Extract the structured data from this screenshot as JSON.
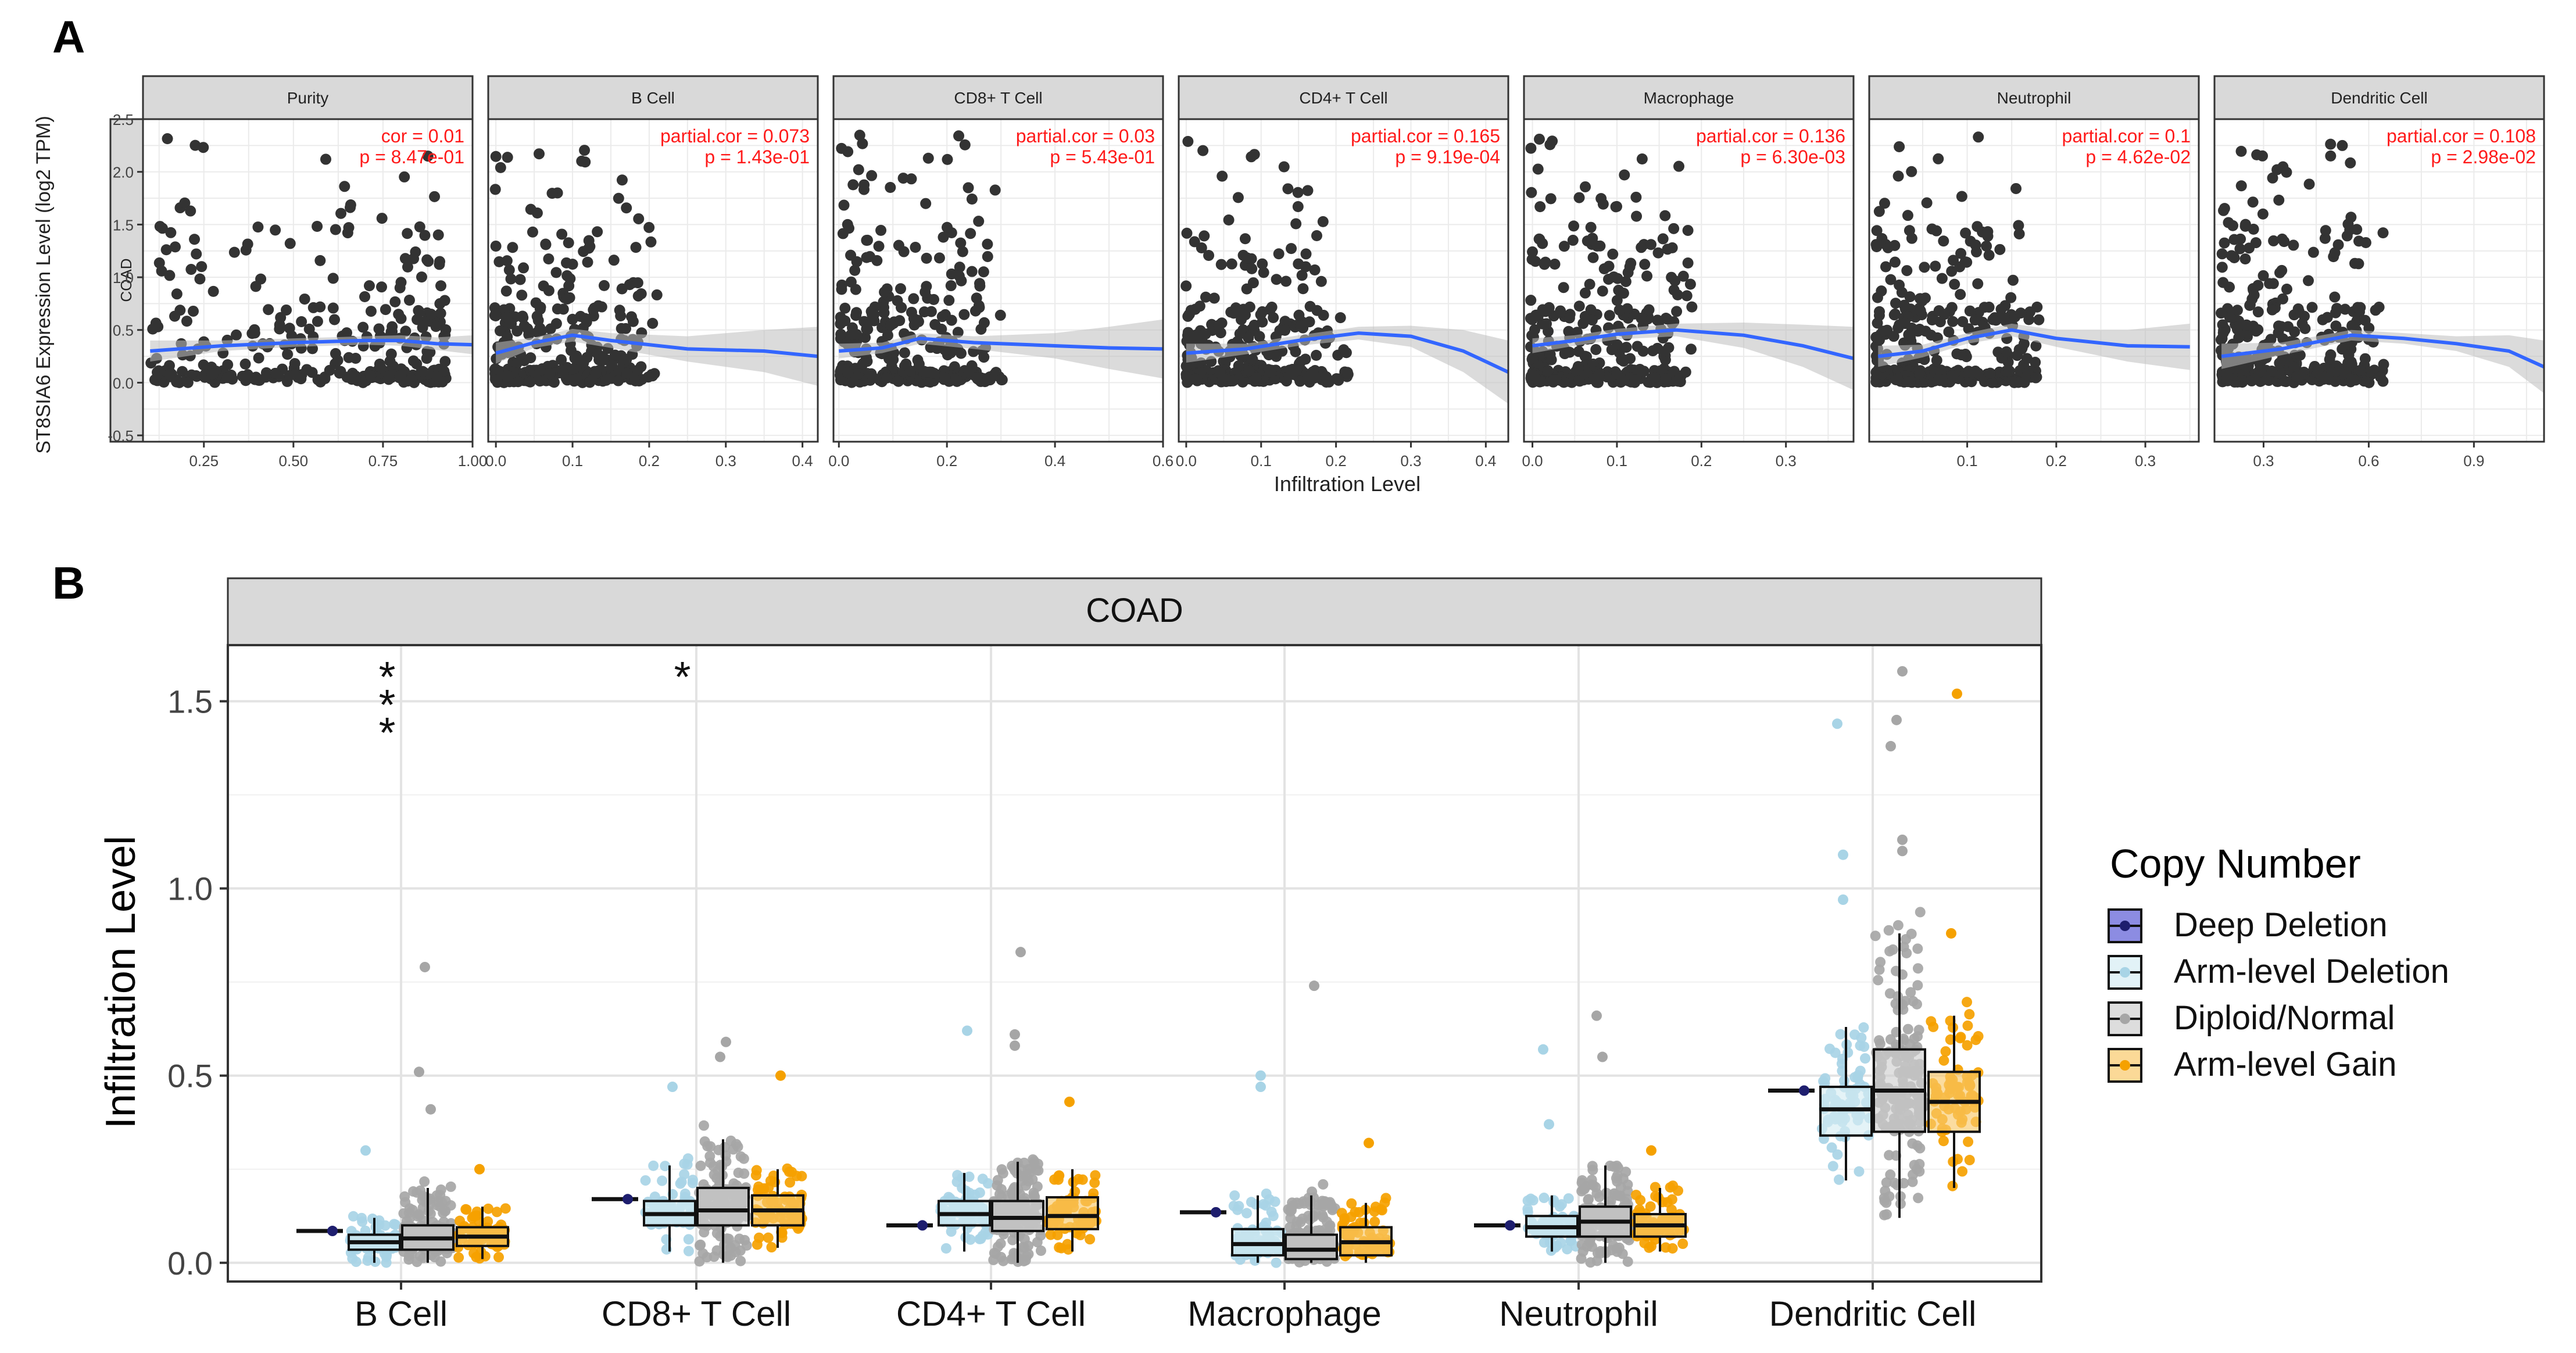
{
  "figure": {
    "panel_a_letter": "A",
    "panel_b_letter": "B"
  },
  "chart_data": [
    {
      "type": "scatter",
      "title": "",
      "row_strip": "COAD",
      "xlabel": "Infiltration Level",
      "ylabel": "ST8SIA6 Expression Level (log2 TPM)",
      "ylim": [
        -0.5,
        2.5
      ],
      "yticks": [
        -0.5,
        0.0,
        0.5,
        1.0,
        1.5,
        2.0,
        2.5
      ],
      "ytick_labels": [
        "-0.5",
        "0.0",
        "0.5",
        "1.0",
        "1.5",
        "2.0",
        "2.5"
      ],
      "point_color": "#333333",
      "trend_color": "#3366ff",
      "ci_color": "#bdbdbd",
      "annotation_color": "#ff1a1a",
      "panels": [
        {
          "name": "Purity",
          "xlim": [
            0.08,
            1.0
          ],
          "xticks": [
            0.25,
            0.5,
            0.75,
            1.0
          ],
          "xtick_labels": [
            "0.25",
            "0.50",
            "0.75",
            "1.00"
          ],
          "stat_line1": "cor = 0.01",
          "stat_line2": "p = 8.47e-01",
          "trend": [
            [
              0.1,
              0.3
            ],
            [
              0.3,
              0.35
            ],
            [
              0.5,
              0.38
            ],
            [
              0.7,
              0.4
            ],
            [
              0.8,
              0.4
            ],
            [
              0.9,
              0.37
            ],
            [
              1.0,
              0.36
            ]
          ],
          "ci": [
            0.1,
            0.05,
            0.04,
            0.04,
            0.05,
            0.06,
            0.09
          ]
        },
        {
          "name": "B Cell",
          "xlim": [
            -0.01,
            0.42
          ],
          "xticks": [
            0.0,
            0.1,
            0.2,
            0.3,
            0.4
          ],
          "xtick_labels": [
            "0.0",
            "0.1",
            "0.2",
            "0.3",
            "0.4"
          ],
          "stat_line1": "partial.cor = 0.073",
          "stat_line2": "p = 1.43e-01",
          "trend": [
            [
              0.0,
              0.28
            ],
            [
              0.05,
              0.38
            ],
            [
              0.1,
              0.45
            ],
            [
              0.15,
              0.4
            ],
            [
              0.25,
              0.32
            ],
            [
              0.35,
              0.3
            ],
            [
              0.42,
              0.25
            ]
          ],
          "ci": [
            0.1,
            0.05,
            0.06,
            0.07,
            0.12,
            0.2,
            0.28
          ]
        },
        {
          "name": "CD8+ T Cell",
          "xlim": [
            -0.01,
            0.6
          ],
          "xticks": [
            0.0,
            0.2,
            0.4,
            0.6
          ],
          "xtick_labels": [
            "0.0",
            "0.2",
            "0.4",
            "0.6"
          ],
          "stat_line1": "partial.cor = 0.03",
          "stat_line2": "p = 5.43e-01",
          "trend": [
            [
              0.0,
              0.3
            ],
            [
              0.08,
              0.33
            ],
            [
              0.15,
              0.42
            ],
            [
              0.25,
              0.38
            ],
            [
              0.4,
              0.35
            ],
            [
              0.5,
              0.33
            ],
            [
              0.6,
              0.32
            ]
          ],
          "ci": [
            0.07,
            0.05,
            0.05,
            0.06,
            0.12,
            0.2,
            0.28
          ]
        },
        {
          "name": "CD4+ T Cell",
          "xlim": [
            -0.01,
            0.43
          ],
          "xticks": [
            0.0,
            0.1,
            0.2,
            0.3,
            0.4
          ],
          "xtick_labels": [
            "0.0",
            "0.1",
            "0.2",
            "0.3",
            "0.4"
          ],
          "stat_line1": "partial.cor = 0.165",
          "stat_line2": "p = 9.19e-04",
          "trend": [
            [
              0.0,
              0.28
            ],
            [
              0.08,
              0.32
            ],
            [
              0.15,
              0.4
            ],
            [
              0.23,
              0.47
            ],
            [
              0.3,
              0.44
            ],
            [
              0.37,
              0.3
            ],
            [
              0.43,
              0.1
            ]
          ],
          "ci": [
            0.09,
            0.05,
            0.05,
            0.06,
            0.1,
            0.2,
            0.3
          ]
        },
        {
          "name": "Macrophage",
          "xlim": [
            -0.01,
            0.38
          ],
          "xticks": [
            0.0,
            0.1,
            0.2,
            0.3
          ],
          "xtick_labels": [
            "0.0",
            "0.1",
            "0.2",
            "0.3"
          ],
          "stat_line1": "partial.cor = 0.136",
          "stat_line2": "p = 6.30e-03",
          "trend": [
            [
              0.0,
              0.35
            ],
            [
              0.05,
              0.4
            ],
            [
              0.1,
              0.46
            ],
            [
              0.17,
              0.5
            ],
            [
              0.25,
              0.45
            ],
            [
              0.32,
              0.35
            ],
            [
              0.38,
              0.23
            ]
          ],
          "ci": [
            0.07,
            0.05,
            0.05,
            0.06,
            0.12,
            0.2,
            0.3
          ]
        },
        {
          "name": "Neutrophil",
          "xlim": [
            -0.01,
            0.36
          ],
          "xticks": [
            0.1,
            0.2,
            0.3
          ],
          "xtick_labels": [
            "0.1",
            "0.2",
            "0.3"
          ],
          "stat_line1": "partial.cor = 0.1",
          "stat_line2": "p = 4.62e-02",
          "trend": [
            [
              0.0,
              0.25
            ],
            [
              0.05,
              0.3
            ],
            [
              0.1,
              0.42
            ],
            [
              0.15,
              0.5
            ],
            [
              0.2,
              0.42
            ],
            [
              0.28,
              0.35
            ],
            [
              0.35,
              0.34
            ]
          ],
          "ci": [
            0.1,
            0.06,
            0.05,
            0.06,
            0.08,
            0.15,
            0.22
          ]
        },
        {
          "name": "Dendritic Cell",
          "xlim": [
            0.16,
            1.1
          ],
          "xticks": [
            0.3,
            0.6,
            0.9
          ],
          "xtick_labels": [
            "0.3",
            "0.6",
            "0.9"
          ],
          "stat_line1": "partial.cor = 0.108",
          "stat_line2": "p = 2.98e-02",
          "trend": [
            [
              0.18,
              0.25
            ],
            [
              0.35,
              0.32
            ],
            [
              0.55,
              0.45
            ],
            [
              0.7,
              0.42
            ],
            [
              0.85,
              0.37
            ],
            [
              1.0,
              0.3
            ],
            [
              1.1,
              0.15
            ]
          ],
          "ci": [
            0.12,
            0.06,
            0.05,
            0.05,
            0.07,
            0.15,
            0.25
          ]
        }
      ]
    },
    {
      "type": "box",
      "title": "",
      "strip": "COAD",
      "xlabel": "",
      "ylabel": "Infiltration Level",
      "ylim": [
        -0.05,
        1.65
      ],
      "yticks": [
        0.0,
        0.5,
        1.0,
        1.5
      ],
      "ytick_labels": [
        "0.0",
        "0.5",
        "1.0",
        "1.5"
      ],
      "categories": [
        "B Cell",
        "CD8+ T Cell",
        "CD4+ T Cell",
        "Macrophage",
        "Neutrophil",
        "Dendritic Cell"
      ],
      "significance": [
        "***",
        "*",
        "",
        "",
        "",
        ""
      ],
      "legend": {
        "title": "Copy Number",
        "position": "right"
      },
      "series": [
        {
          "name": "Deep Deletion",
          "fill": "#5b5bd6",
          "point": "#1e1e6e",
          "boxes": [
            {
              "min": 0.085,
              "q1": 0.085,
              "median": 0.085,
              "q3": 0.085,
              "max": 0.085
            },
            {
              "min": 0.17,
              "q1": 0.17,
              "median": 0.17,
              "q3": 0.17,
              "max": 0.17
            },
            {
              "min": 0.1,
              "q1": 0.1,
              "median": 0.1,
              "q3": 0.1,
              "max": 0.1
            },
            {
              "min": 0.135,
              "q1": 0.135,
              "median": 0.135,
              "q3": 0.135,
              "max": 0.135
            },
            {
              "min": 0.1,
              "q1": 0.1,
              "median": 0.1,
              "q3": 0.1,
              "max": 0.1
            },
            {
              "min": 0.46,
              "q1": 0.46,
              "median": 0.46,
              "q3": 0.46,
              "max": 0.46
            }
          ]
        },
        {
          "name": "Arm-level Deletion",
          "fill": "#d6ecf3",
          "point": "#a8d4e6",
          "boxes": [
            {
              "min": 0.0,
              "q1": 0.035,
              "median": 0.055,
              "q3": 0.075,
              "max": 0.12
            },
            {
              "min": 0.03,
              "q1": 0.1,
              "median": 0.13,
              "q3": 0.165,
              "max": 0.26
            },
            {
              "min": 0.03,
              "q1": 0.1,
              "median": 0.13,
              "q3": 0.165,
              "max": 0.24
            },
            {
              "min": 0.0,
              "q1": 0.02,
              "median": 0.05,
              "q3": 0.09,
              "max": 0.18
            },
            {
              "min": 0.03,
              "q1": 0.07,
              "median": 0.095,
              "q3": 0.125,
              "max": 0.18
            },
            {
              "min": 0.22,
              "q1": 0.34,
              "median": 0.41,
              "q3": 0.47,
              "max": 0.63
            }
          ]
        },
        {
          "name": "Diploid/Normal",
          "fill": "#cfcfcf",
          "point": "#a6a6a6",
          "boxes": [
            {
              "min": 0.0,
              "q1": 0.035,
              "median": 0.065,
              "q3": 0.1,
              "max": 0.2
            },
            {
              "min": 0.0,
              "q1": 0.1,
              "median": 0.14,
              "q3": 0.2,
              "max": 0.33
            },
            {
              "min": 0.0,
              "q1": 0.085,
              "median": 0.12,
              "q3": 0.165,
              "max": 0.27
            },
            {
              "min": 0.0,
              "q1": 0.01,
              "median": 0.035,
              "q3": 0.075,
              "max": 0.18
            },
            {
              "min": 0.0,
              "q1": 0.07,
              "median": 0.11,
              "q3": 0.15,
              "max": 0.26
            },
            {
              "min": 0.12,
              "q1": 0.35,
              "median": 0.46,
              "q3": 0.57,
              "max": 0.88
            }
          ]
        },
        {
          "name": "Arm-level Gain",
          "fill": "#f9c96b",
          "point": "#f5a100",
          "boxes": [
            {
              "min": 0.01,
              "q1": 0.045,
              "median": 0.07,
              "q3": 0.095,
              "max": 0.15
            },
            {
              "min": 0.04,
              "q1": 0.1,
              "median": 0.14,
              "q3": 0.18,
              "max": 0.25
            },
            {
              "min": 0.03,
              "q1": 0.09,
              "median": 0.125,
              "q3": 0.175,
              "max": 0.25
            },
            {
              "min": 0.0,
              "q1": 0.02,
              "median": 0.055,
              "q3": 0.095,
              "max": 0.16
            },
            {
              "min": 0.03,
              "q1": 0.07,
              "median": 0.1,
              "q3": 0.13,
              "max": 0.2
            },
            {
              "min": 0.2,
              "q1": 0.35,
              "median": 0.43,
              "q3": 0.51,
              "max": 0.66
            }
          ]
        }
      ],
      "outliers": [
        {
          "category": 0,
          "series": 1,
          "value": 0.3
        },
        {
          "category": 0,
          "series": 2,
          "value": 0.79
        },
        {
          "category": 0,
          "series": 2,
          "value": 0.51
        },
        {
          "category": 0,
          "series": 2,
          "value": 0.41
        },
        {
          "category": 0,
          "series": 3,
          "value": 0.25
        },
        {
          "category": 1,
          "series": 1,
          "value": 0.47
        },
        {
          "category": 1,
          "series": 2,
          "value": 0.59
        },
        {
          "category": 1,
          "series": 2,
          "value": 0.55
        },
        {
          "category": 1,
          "series": 3,
          "value": 0.5
        },
        {
          "category": 2,
          "series": 1,
          "value": 0.62
        },
        {
          "category": 2,
          "series": 2,
          "value": 0.83
        },
        {
          "category": 2,
          "series": 2,
          "value": 0.61
        },
        {
          "category": 2,
          "series": 2,
          "value": 0.58
        },
        {
          "category": 2,
          "series": 3,
          "value": 0.43
        },
        {
          "category": 3,
          "series": 1,
          "value": 0.5
        },
        {
          "category": 3,
          "series": 1,
          "value": 0.47
        },
        {
          "category": 3,
          "series": 2,
          "value": 0.74
        },
        {
          "category": 3,
          "series": 3,
          "value": 0.32
        },
        {
          "category": 4,
          "series": 1,
          "value": 0.57
        },
        {
          "category": 4,
          "series": 1,
          "value": 0.37
        },
        {
          "category": 4,
          "series": 2,
          "value": 0.66
        },
        {
          "category": 4,
          "series": 2,
          "value": 0.55
        },
        {
          "category": 4,
          "series": 3,
          "value": 0.3
        },
        {
          "category": 5,
          "series": 1,
          "value": 1.44
        },
        {
          "category": 5,
          "series": 1,
          "value": 1.09
        },
        {
          "category": 5,
          "series": 1,
          "value": 0.97
        },
        {
          "category": 5,
          "series": 2,
          "value": 1.58
        },
        {
          "category": 5,
          "series": 2,
          "value": 1.45
        },
        {
          "category": 5,
          "series": 2,
          "value": 1.38
        },
        {
          "category": 5,
          "series": 2,
          "value": 1.13
        },
        {
          "category": 5,
          "series": 2,
          "value": 1.1
        },
        {
          "category": 5,
          "series": 3,
          "value": 1.52
        },
        {
          "category": 5,
          "series": 3,
          "value": 0.88
        }
      ]
    }
  ]
}
